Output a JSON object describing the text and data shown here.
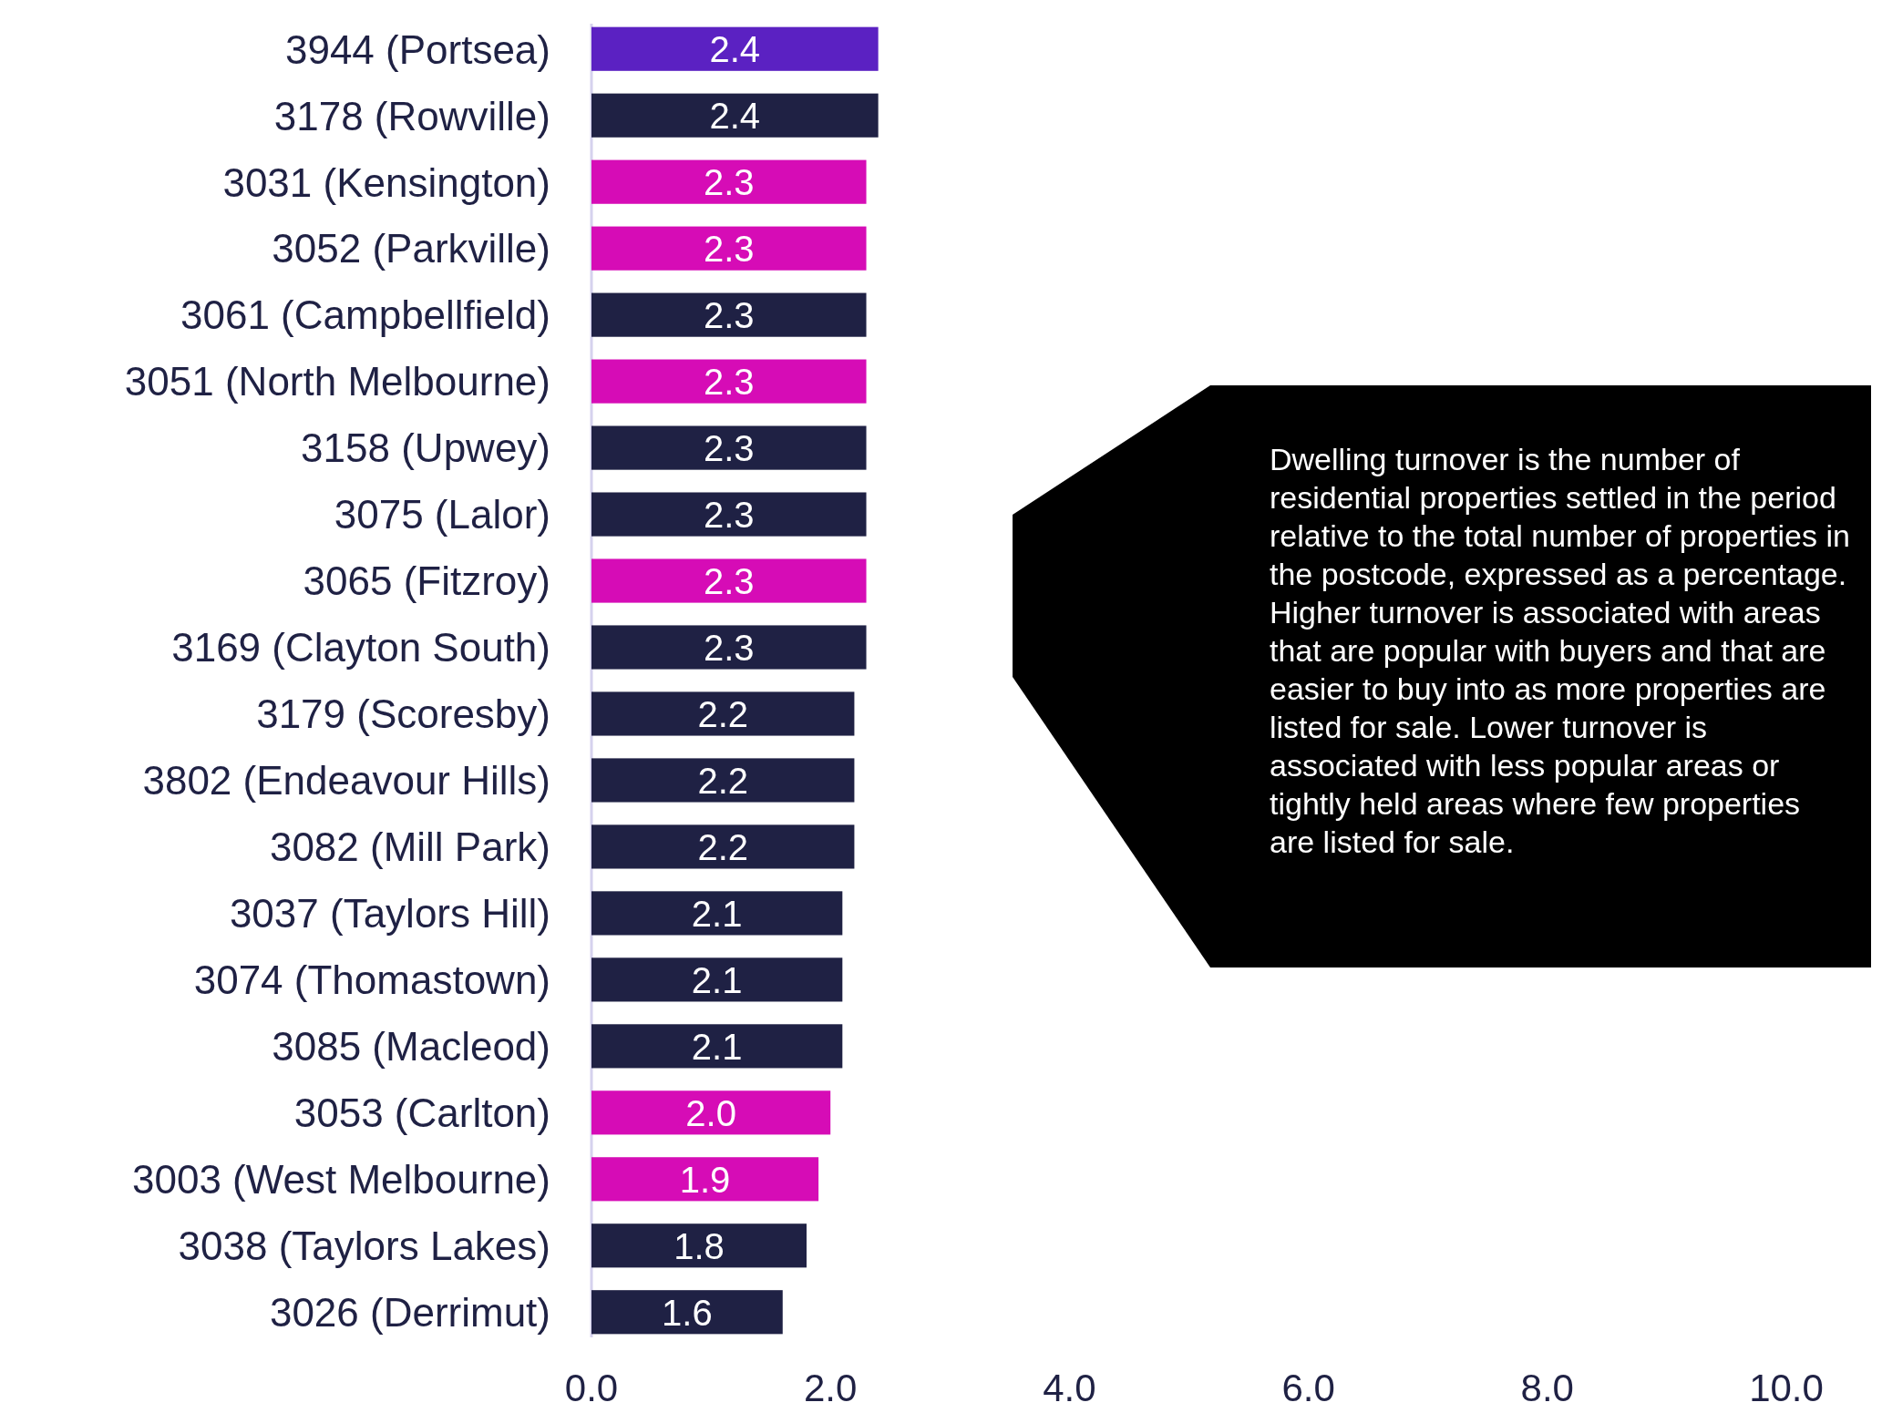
{
  "chart_data": {
    "type": "bar",
    "orientation": "horizontal",
    "categories": [
      "3944 (Portsea)",
      "3178 (Rowville)",
      "3031 (Kensington)",
      "3052 (Parkville)",
      "3061 (Campbellfield)",
      "3051 (North Melbourne)",
      "3158 (Upwey)",
      "3075 (Lalor)",
      "3065 (Fitzroy)",
      "3169 (Clayton South)",
      "3179 (Scoresby)",
      "3802 (Endeavour Hills)",
      "3082 (Mill Park)",
      "3037 (Taylors Hill)",
      "3074 (Thomastown)",
      "3085 (Macleod)",
      "3053 (Carlton)",
      "3003 (West Melbourne)",
      "3038 (Taylors Lakes)",
      "3026 (Derrimut)"
    ],
    "values": [
      2.4,
      2.4,
      2.3,
      2.3,
      2.3,
      2.3,
      2.3,
      2.3,
      2.3,
      2.3,
      2.2,
      2.2,
      2.2,
      2.1,
      2.1,
      2.1,
      2.0,
      1.9,
      1.8,
      1.6
    ],
    "value_labels": [
      "2.4",
      "2.4",
      "2.3",
      "2.3",
      "2.3",
      "2.3",
      "2.3",
      "2.3",
      "2.3",
      "2.3",
      "2.2",
      "2.2",
      "2.2",
      "2.1",
      "2.1",
      "2.1",
      "2.0",
      "1.9",
      "1.8",
      "1.6"
    ],
    "colors": [
      "#5b21c2",
      "#1f2144",
      "#d60cb6",
      "#d60cb6",
      "#1f2144",
      "#d60cb6",
      "#1f2144",
      "#1f2144",
      "#d60cb6",
      "#1f2144",
      "#1f2144",
      "#1f2144",
      "#1f2144",
      "#1f2144",
      "#1f2144",
      "#1f2144",
      "#d60cb6",
      "#d60cb6",
      "#1f2144",
      "#1f2144"
    ],
    "xlim": [
      0,
      10
    ],
    "xticks": [
      {
        "value": 0,
        "label": "0.0"
      },
      {
        "value": 2,
        "label": "2.0"
      },
      {
        "value": 4,
        "label": "4.0"
      },
      {
        "value": 6,
        "label": "6.0"
      },
      {
        "value": 8,
        "label": "8.0"
      },
      {
        "value": 10,
        "label": "10.0"
      }
    ],
    "grid": false,
    "annotations": [
      "Dwelling turnover is the number of residential properties settled in the period relative to the total number of properties in the postcode, expressed as a percentage. Higher turnover is associated with areas that are popular with buyers and that are easier to buy into as more properties are listed for sale. Lower turnover is associated with less popular areas or tightly held areas where few properties are listed for sale."
    ]
  }
}
